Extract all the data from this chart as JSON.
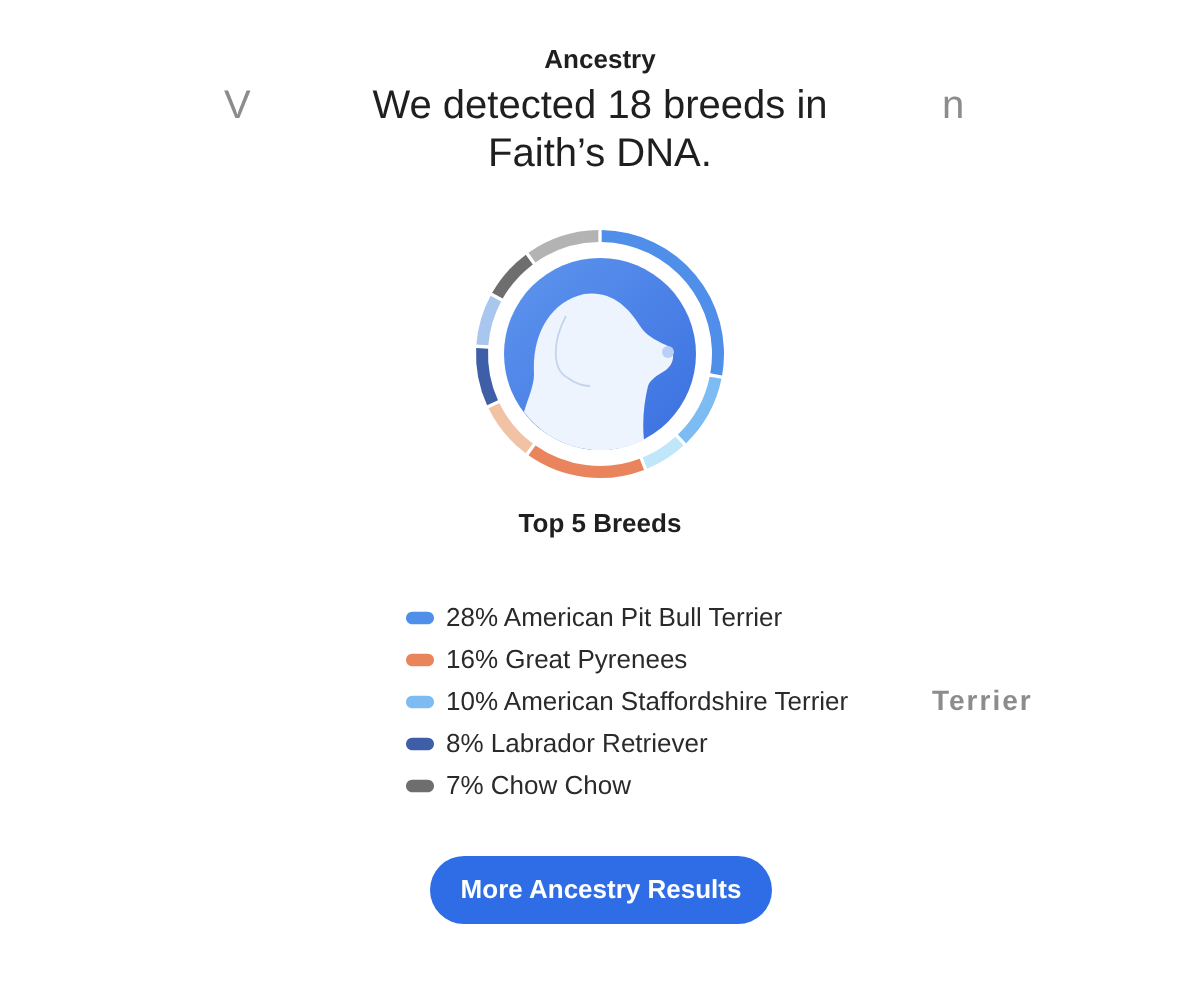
{
  "chart_data": {
    "type": "donut",
    "title": "Ancestry",
    "subtitle": "We detected 18 breeds in Faith’s DNA.",
    "legend_title": "Top 5 Breeds",
    "categories": [
      "American Pit Bull Terrier",
      "American Staffordshire Terrier",
      null,
      "Great Pyrenees",
      null,
      "Labrador Retriever",
      null,
      "Chow Chow",
      null
    ],
    "values": [
      28,
      10,
      6,
      16,
      8,
      8,
      7,
      7,
      10
    ],
    "value_labels": [
      "28%",
      "10%",
      null,
      "16%",
      null,
      "8%",
      null,
      "7%",
      null
    ],
    "colors": [
      "#4f8fea",
      "#7cbcf2",
      "#bfe6f9",
      "#e9845c",
      "#f2c2a4",
      "#3e5fa8",
      "#a9c6ee",
      "#6e6e6e",
      "#b3b3b3"
    ],
    "legend": "bottom",
    "annotations": [
      "More Ancestry Results",
      "V",
      "n",
      "Terrier"
    ]
  }
}
